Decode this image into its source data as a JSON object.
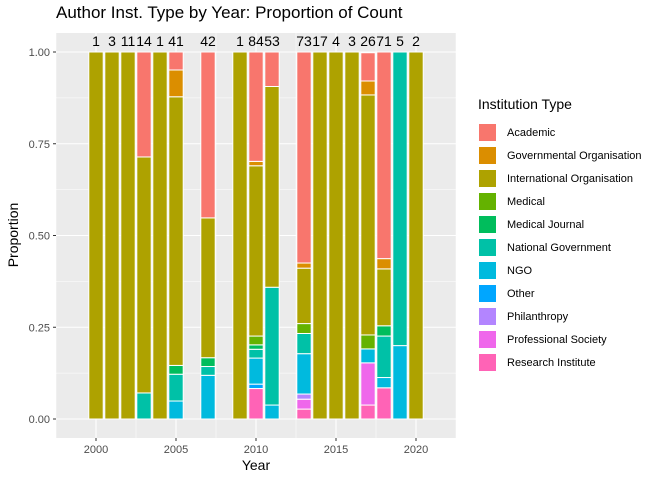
{
  "chart_data": {
    "type": "bar",
    "stacked": "proportion",
    "title": "Author Inst. Type by Year: Proportion of Count",
    "xlabel": "Year",
    "ylabel": "Proportion",
    "xlim": [
      1997.5,
      2022.5
    ],
    "ylim": [
      0,
      1
    ],
    "x_ticks": [
      "2000",
      "2005",
      "2010",
      "2015",
      "2020"
    ],
    "y_ticks": [
      "0.00",
      "0.25",
      "0.50",
      "0.75",
      "1.00"
    ],
    "legend_title": "Institution Type",
    "legend_position": "right",
    "categories": [
      "Academic",
      "Governmental Organisation",
      "International Organisation",
      "Medical",
      "Medical Journal",
      "National Government",
      "NGO",
      "Other",
      "Philanthropy",
      "Professional Society",
      "Research Institute"
    ],
    "colors": {
      "Academic": "#F8766D",
      "Governmental Organisation": "#DB8E00",
      "International Organisation": "#AEA200",
      "Medical": "#64B200",
      "Medical Journal": "#00BD5C",
      "National Government": "#00C1A7",
      "NGO": "#00BADE",
      "Other": "#00A6FF",
      "Philanthropy": "#B385FF",
      "Professional Society": "#EF67EB",
      "Research Institute": "#FF63B6"
    },
    "bars": [
      {
        "year": 2000,
        "count": "1",
        "segments": {
          "International Organisation": 1.0
        }
      },
      {
        "year": 2001,
        "count": "3",
        "segments": {
          "International Organisation": 1.0
        }
      },
      {
        "year": 2002,
        "count": "11",
        "segments": {
          "International Organisation": 1.0
        }
      },
      {
        "year": 2003,
        "count": "14",
        "segments": {
          "Academic": 0.286,
          "International Organisation": 0.643,
          "National Government": 0.071
        }
      },
      {
        "year": 2004,
        "count": "1",
        "segments": {
          "International Organisation": 1.0
        }
      },
      {
        "year": 2005,
        "count": "41",
        "segments": {
          "Academic": 0.049,
          "Governmental Organisation": 0.073,
          "International Organisation": 0.732,
          "Medical Journal": 0.024,
          "National Government": 0.073,
          "NGO": 0.049
        }
      },
      {
        "year": 2007,
        "count": "42",
        "segments": {
          "Academic": 0.452,
          "International Organisation": 0.381,
          "Medical Journal": 0.024,
          "National Government": 0.024,
          "NGO": 0.119
        }
      },
      {
        "year": 2009,
        "count": "1",
        "segments": {
          "International Organisation": 1.0
        }
      },
      {
        "year": 2010,
        "count": "84",
        "segments": {
          "Academic": 0.298,
          "Governmental Organisation": 0.012,
          "International Organisation": 0.464,
          "Medical": 0.024,
          "Medical Journal": 0.012,
          "National Government": 0.024,
          "NGO": 0.071,
          "Other": 0.012,
          "Research Institute": 0.083
        }
      },
      {
        "year": 2011,
        "count": "53",
        "segments": {
          "Academic": 0.094,
          "International Organisation": 0.547,
          "National Government": 0.321,
          "NGO": 0.038
        }
      },
      {
        "year": 2013,
        "count": "73",
        "segments": {
          "Academic": 0.575,
          "Governmental Organisation": 0.014,
          "International Organisation": 0.151,
          "Medical": 0.027,
          "National Government": 0.055,
          "NGO": 0.11,
          "Philanthropy": 0.014,
          "Professional Society": 0.027,
          "Research Institute": 0.027
        }
      },
      {
        "year": 2014,
        "count": "17",
        "segments": {
          "International Organisation": 1.0
        }
      },
      {
        "year": 2015,
        "count": "4",
        "segments": {
          "International Organisation": 1.0
        }
      },
      {
        "year": 2016,
        "count": "3",
        "segments": {
          "International Organisation": 1.0
        }
      },
      {
        "year": 2017,
        "count": "26",
        "segments": {
          "Academic": 0.077,
          "Governmental Organisation": 0.038,
          "International Organisation": 0.654,
          "Medical": 0.038,
          "NGO": 0.038,
          "Professional Society": 0.115,
          "Research Institute": 0.038
        }
      },
      {
        "year": 2018,
        "count": "71",
        "segments": {
          "Academic": 0.563,
          "Governmental Organisation": 0.028,
          "International Organisation": 0.155,
          "Medical Journal": 0.028,
          "National Government": 0.113,
          "NGO": 0.028,
          "Research Institute": 0.085
        }
      },
      {
        "year": 2019,
        "count": "5",
        "segments": {
          "National Government": 0.8,
          "NGO": 0.2
        }
      },
      {
        "year": 2020,
        "count": "2",
        "segments": {
          "International Organisation": 1.0
        }
      }
    ]
  }
}
